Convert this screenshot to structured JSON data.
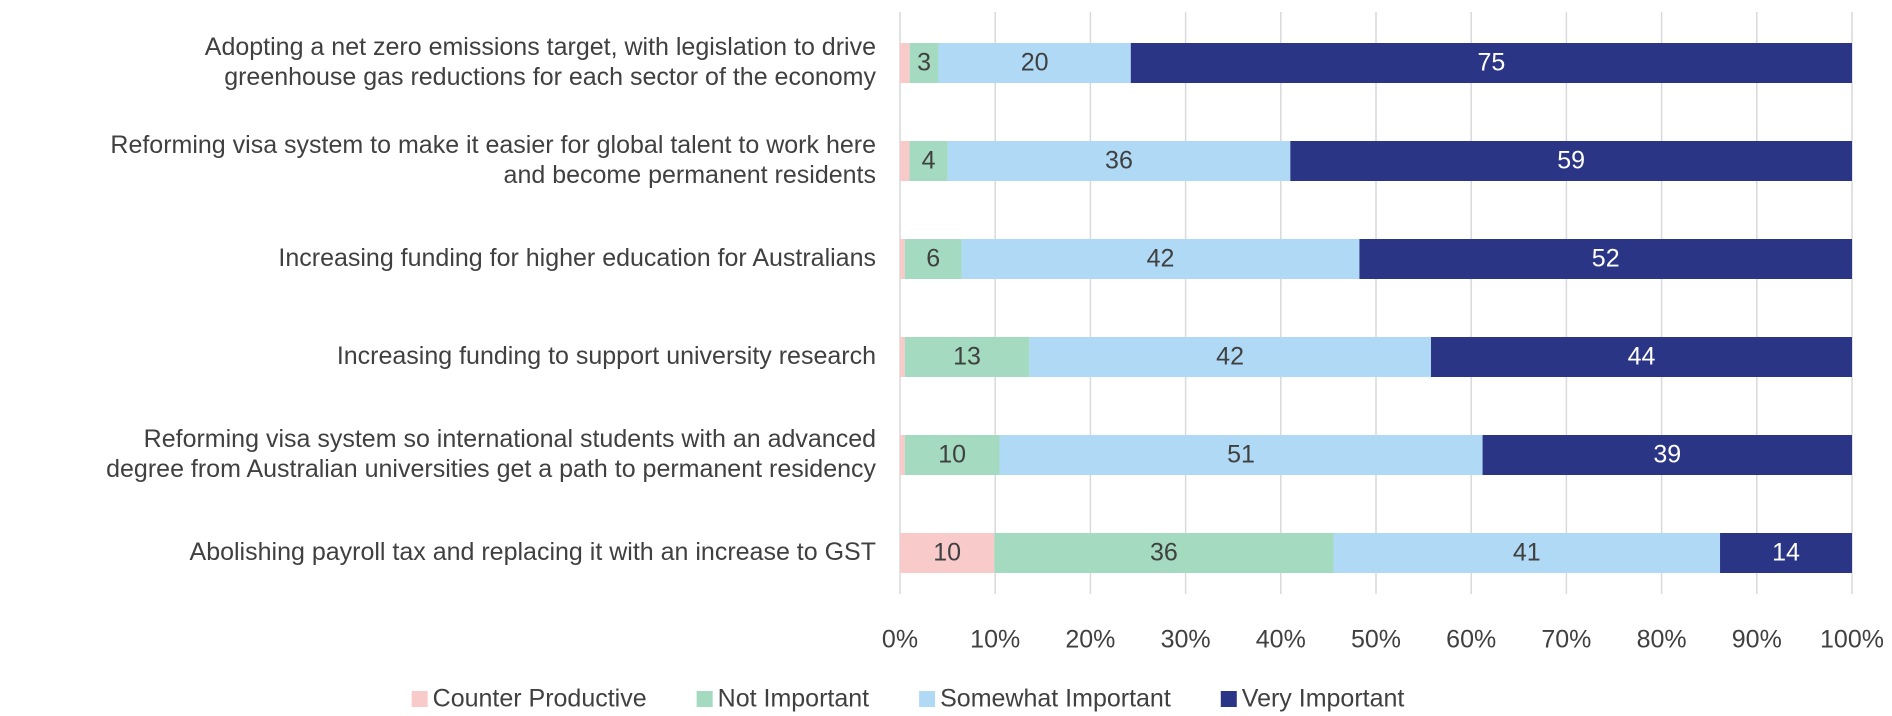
{
  "chart_data": {
    "type": "bar",
    "orientation": "horizontal",
    "stacking": "percent",
    "categories": [
      "Adopting a net zero emissions target, with legislation to drive\ngreenhouse gas reductions for each sector of the economy",
      "Reforming visa system to make it easier for global talent to work here\nand become permanent residents",
      "Increasing funding for higher education for Australians",
      "Increasing funding to support university research",
      "Reforming visa system so international students with an advanced\ndegree from Australian universities get a path to permanent residency",
      "Abolishing payroll tax and replacing it with an increase to GST"
    ],
    "series": [
      {
        "name": "Counter Productive",
        "color": "#f8caca",
        "values": [
          1,
          1,
          0.5,
          0.5,
          0.5,
          10
        ],
        "value_labels": [
          null,
          null,
          null,
          null,
          null,
          "10"
        ]
      },
      {
        "name": "Not Important",
        "color": "#a3dac0",
        "values": [
          3,
          4,
          6,
          13,
          10,
          36
        ]
      },
      {
        "name": "Somewhat Important",
        "color": "#afd9f4",
        "values": [
          20,
          36,
          42,
          42,
          51,
          41
        ]
      },
      {
        "name": "Very Important",
        "color": "#2b3586",
        "values": [
          75,
          59,
          52,
          44,
          39,
          14
        ]
      }
    ],
    "xlim": [
      0,
      100
    ],
    "xticks": [
      {
        "value": 0,
        "label": "0%"
      },
      {
        "value": 10,
        "label": "10%"
      },
      {
        "value": 20,
        "label": "20%"
      },
      {
        "value": 30,
        "label": "30%"
      },
      {
        "value": 40,
        "label": "40%"
      },
      {
        "value": 50,
        "label": "50%"
      },
      {
        "value": 60,
        "label": "60%"
      },
      {
        "value": 70,
        "label": "70%"
      },
      {
        "value": 80,
        "label": "80%"
      },
      {
        "value": 90,
        "label": "90%"
      },
      {
        "value": 100,
        "label": "100%"
      }
    ],
    "grid": true,
    "legend": "bottom"
  }
}
